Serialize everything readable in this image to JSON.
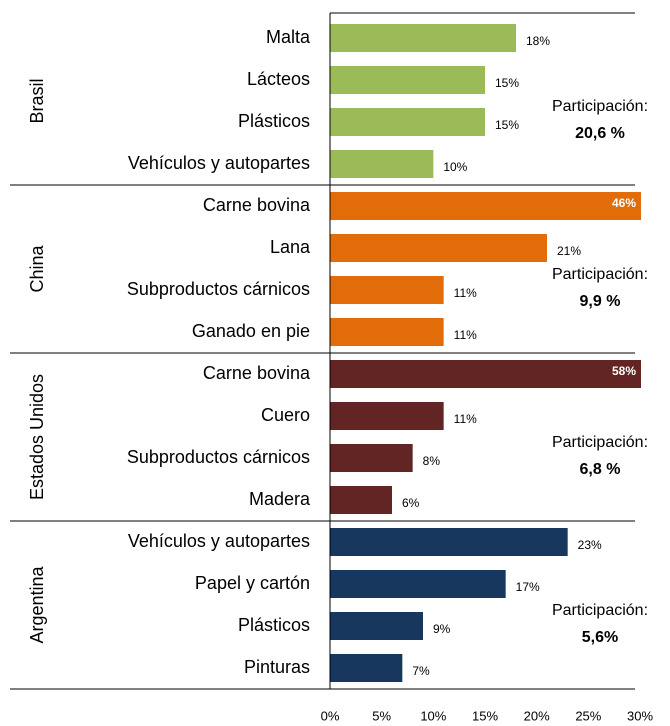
{
  "chart_data": {
    "type": "bar",
    "xlim": [
      0,
      30
    ],
    "xticks": [
      {
        "value": 0,
        "label": "0%"
      },
      {
        "value": 5,
        "label": "5%"
      },
      {
        "value": 10,
        "label": "10%"
      },
      {
        "value": 15,
        "label": "15%"
      },
      {
        "value": 20,
        "label": "20%"
      },
      {
        "value": 25,
        "label": "25%"
      },
      {
        "value": 30,
        "label": "30%"
      }
    ],
    "groups": [
      {
        "name": "Brasil",
        "color": "#9bbb59",
        "categories": [
          "Malta",
          "Lácteos",
          "Plásticos",
          "Vehículos y autopartes"
        ],
        "values": [
          18,
          15,
          15,
          10
        ],
        "value_labels": [
          "18%",
          "15%",
          "15%",
          "10%"
        ],
        "annotation": "Participación:",
        "share": "20,6 %"
      },
      {
        "name": "China",
        "color": "#e36c0a",
        "categories": [
          "Carne bovina",
          "Lana",
          "Subproductos cárnicos",
          "Ganado en pie"
        ],
        "values": [
          46,
          21,
          11,
          11
        ],
        "value_labels": [
          "46%",
          "21%",
          "11%",
          "11%"
        ],
        "annotation": "Participación:",
        "share": "9,9 %"
      },
      {
        "name": "Estados Unidos",
        "color": "#632523",
        "categories": [
          "Carne bovina",
          "Cuero",
          "Subproductos cárnicos",
          "Madera"
        ],
        "values": [
          58,
          11,
          8,
          6
        ],
        "value_labels": [
          "58%",
          "11%",
          "8%",
          "6%"
        ],
        "annotation": "Participación:",
        "share": "6,8 %"
      },
      {
        "name": "Argentina",
        "color": "#17375e",
        "categories": [
          "Vehículos y autopartes",
          "Papel y cartón",
          "Plásticos",
          "Pinturas"
        ],
        "values": [
          23,
          17,
          9,
          7
        ],
        "value_labels": [
          "23%",
          "17%",
          "9%",
          "7%"
        ],
        "annotation": "Participación:",
        "share": "5,6%"
      }
    ]
  }
}
